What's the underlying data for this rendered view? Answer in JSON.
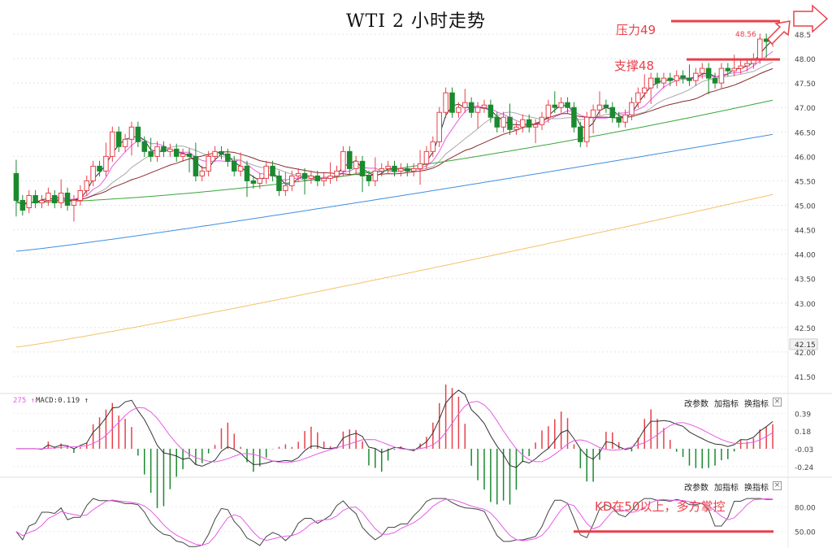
{
  "title": "WTI 2 小时走势",
  "annotations": {
    "resistance": "压力49",
    "support": "支撑48",
    "kd_note": "KD在50以上，多方掌控",
    "last_price_tag": "48.56"
  },
  "panel_controls": {
    "params": "改参数",
    "add": "加指标",
    "switch": "换指标",
    "close": "×"
  },
  "macd_header": {
    "prefix": "275 ↑",
    "label": "MACD:0.119 ↑"
  },
  "colors": {
    "up": "#e8404a",
    "down": "#1a8a2e",
    "ma5": "#333333",
    "ma10": "#e85be8",
    "ma20": "#aaaaaa",
    "ma30": "#8b2a2a",
    "ma60": "#3aa63a",
    "ma120": "#3f8fe0",
    "ma250": "#f5c26b",
    "annotation": "#e8404a"
  },
  "chart_data": [
    {
      "type": "candlestick",
      "title": "WTI 2 小时走势",
      "ylim": [
        41.25,
        49.2
      ],
      "yticks": [
        "48.5",
        "48.00",
        "47.50",
        "47.00",
        "46.50",
        "46.00",
        "45.50",
        "45.00",
        "44.50",
        "44.00",
        "43.50",
        "43.00",
        "42.50",
        "42.00",
        "41.50"
      ],
      "ytick_values": [
        48.5,
        48.0,
        47.5,
        47.0,
        46.5,
        46.0,
        45.5,
        45.0,
        44.5,
        44.0,
        43.5,
        43.0,
        42.5,
        42.0,
        41.5
      ],
      "current_price_label": "42.15",
      "resistance_level": 49,
      "support_level": 48,
      "candles": [
        [
          45.65,
          45.1
        ],
        [
          45.1,
          44.9
        ],
        [
          44.95,
          45.2
        ],
        [
          45.2,
          45.05
        ],
        [
          45.05,
          45.1
        ],
        [
          45.1,
          45.25
        ],
        [
          45.2,
          45.05
        ],
        [
          45.05,
          45.25
        ],
        [
          45.25,
          45.0
        ],
        [
          45.0,
          45.1
        ],
        [
          45.1,
          45.3
        ],
        [
          45.3,
          45.5
        ],
        [
          45.5,
          45.8
        ],
        [
          45.8,
          45.7
        ],
        [
          45.7,
          46.0
        ],
        [
          46.0,
          46.5
        ],
        [
          46.5,
          46.2
        ],
        [
          46.2,
          46.35
        ],
        [
          46.35,
          46.6
        ],
        [
          46.6,
          46.3
        ],
        [
          46.3,
          46.1
        ],
        [
          46.1,
          46.0
        ],
        [
          46.0,
          46.2
        ],
        [
          46.2,
          46.1
        ],
        [
          46.1,
          46.15
        ],
        [
          46.15,
          46.0
        ],
        [
          46.0,
          46.05
        ],
        [
          46.05,
          46.0
        ],
        [
          46.0,
          45.6
        ],
        [
          45.6,
          45.7
        ],
        [
          45.7,
          46.0
        ],
        [
          46.0,
          46.1
        ],
        [
          46.1,
          46.05
        ],
        [
          46.05,
          45.9
        ],
        [
          45.9,
          45.7
        ],
        [
          45.7,
          45.8
        ],
        [
          45.8,
          45.5
        ],
        [
          45.5,
          45.45
        ],
        [
          45.45,
          45.55
        ],
        [
          45.55,
          45.8
        ],
        [
          45.8,
          45.6
        ],
        [
          45.6,
          45.3
        ],
        [
          45.3,
          45.4
        ],
        [
          45.4,
          45.6
        ],
        [
          45.6,
          45.65
        ],
        [
          45.65,
          45.55
        ],
        [
          45.55,
          45.6
        ],
        [
          45.6,
          45.5
        ],
        [
          45.5,
          45.55
        ],
        [
          45.55,
          45.6
        ],
        [
          45.6,
          45.7
        ],
        [
          45.7,
          46.1
        ],
        [
          46.1,
          45.75
        ],
        [
          45.75,
          45.9
        ],
        [
          45.9,
          45.6
        ],
        [
          45.6,
          45.5
        ],
        [
          45.5,
          45.7
        ],
        [
          45.7,
          45.75
        ],
        [
          45.75,
          45.8
        ],
        [
          45.8,
          45.7
        ],
        [
          45.7,
          45.75
        ],
        [
          45.75,
          45.7
        ],
        [
          45.7,
          45.75
        ],
        [
          45.75,
          45.85
        ],
        [
          45.85,
          46.1
        ],
        [
          46.1,
          46.3
        ],
        [
          46.3,
          46.9
        ],
        [
          46.9,
          47.3
        ],
        [
          47.3,
          46.9
        ],
        [
          46.9,
          47.0
        ],
        [
          47.0,
          47.1
        ],
        [
          47.1,
          46.9
        ],
        [
          46.9,
          47.0
        ],
        [
          47.0,
          47.05
        ],
        [
          47.05,
          46.8
        ],
        [
          46.8,
          46.6
        ],
        [
          46.6,
          46.8
        ],
        [
          46.8,
          46.55
        ],
        [
          46.55,
          46.6
        ],
        [
          46.6,
          46.75
        ],
        [
          46.75,
          46.6
        ],
        [
          46.6,
          46.65
        ],
        [
          46.65,
          46.8
        ],
        [
          46.8,
          47.05
        ],
        [
          47.05,
          47.0
        ],
        [
          47.0,
          47.1
        ],
        [
          47.1,
          47.0
        ],
        [
          47.0,
          46.6
        ],
        [
          46.6,
          46.3
        ],
        [
          46.3,
          46.8
        ],
        [
          46.8,
          46.95
        ],
        [
          46.95,
          47.05
        ],
        [
          47.05,
          47.0
        ],
        [
          47.0,
          46.8
        ],
        [
          46.8,
          46.7
        ],
        [
          46.7,
          46.85
        ],
        [
          46.85,
          47.1
        ],
        [
          47.1,
          47.3
        ],
        [
          47.3,
          47.4
        ],
        [
          47.4,
          47.6
        ],
        [
          47.6,
          47.5
        ],
        [
          47.5,
          47.6
        ],
        [
          47.6,
          47.55
        ],
        [
          47.55,
          47.65
        ],
        [
          47.65,
          47.6
        ],
        [
          47.6,
          47.55
        ],
        [
          47.55,
          47.7
        ],
        [
          47.7,
          47.8
        ],
        [
          47.8,
          47.6
        ],
        [
          47.6,
          47.5
        ],
        [
          47.5,
          47.8
        ],
        [
          47.8,
          47.75
        ],
        [
          47.75,
          47.8
        ],
        [
          47.8,
          47.85
        ],
        [
          47.85,
          47.9
        ],
        [
          47.9,
          48.0
        ],
        [
          48.0,
          48.4
        ],
        [
          48.4,
          48.35
        ],
        [
          48.35,
          48.4
        ]
      ]
    },
    {
      "type": "line",
      "name": "MACD",
      "ylim": [
        -0.3,
        0.47
      ],
      "yticks": [
        "0.39",
        "0.18",
        "-0.03",
        "-0.24"
      ],
      "ytick_values": [
        0.39,
        0.18,
        -0.03,
        -0.24
      ]
    },
    {
      "type": "line",
      "name": "KD",
      "ylim": [
        30,
        100
      ],
      "yticks": [
        "80.00",
        "50.00"
      ],
      "ytick_values": [
        80,
        50
      ],
      "reference_level": 50
    }
  ]
}
